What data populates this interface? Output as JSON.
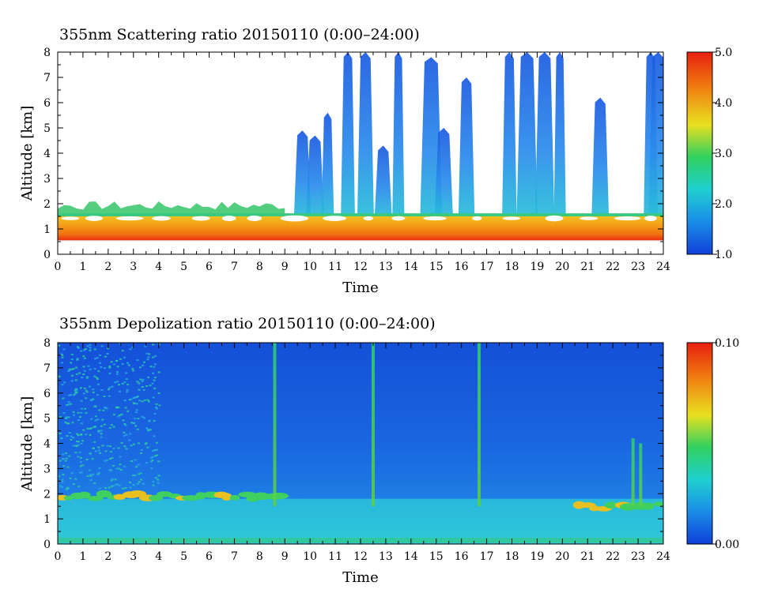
{
  "chart_data": [
    {
      "type": "heatmap",
      "title": "355nm Scattering ratio  20150110 (0:00–24:00)",
      "xlabel": "Time",
      "ylabel": "Altitude [km]",
      "xlim": [
        0,
        24
      ],
      "ylim": [
        0,
        8
      ],
      "x_ticks": [
        "0",
        "1",
        "2",
        "3",
        "4",
        "5",
        "6",
        "7",
        "8",
        "9",
        "10",
        "11",
        "12",
        "13",
        "14",
        "15",
        "16",
        "17",
        "18",
        "19",
        "20",
        "21",
        "22",
        "23",
        "24"
      ],
      "y_ticks": [
        "0",
        "1",
        "2",
        "3",
        "4",
        "5",
        "6",
        "7",
        "8"
      ],
      "colorbar": {
        "range": [
          1.0,
          5.0
        ],
        "tick_labels": [
          "1.0",
          "2.0",
          "3.0",
          "4.0",
          "5.0"
        ]
      },
      "colorscale": [
        "#1040d8",
        "#1a8ce8",
        "#20d0d0",
        "#30d060",
        "#e8e020",
        "#f08010",
        "#e82010"
      ],
      "layers": [
        {
          "feature": "aerosol boundary layer",
          "base_km": 0.55,
          "top_km": 1.5,
          "value": 4.5
        },
        {
          "feature": "low cloud top (clipped)",
          "x_range": [
            0,
            9
          ],
          "top_km": 2.0,
          "value": 2.6
        }
      ],
      "cloud_columns": [
        {
          "time": 9.7,
          "top_km": 4.9
        },
        {
          "time": 10.2,
          "top_km": 4.7
        },
        {
          "time": 10.7,
          "top_km": 5.6
        },
        {
          "time": 11.5,
          "top_km": 8.0
        },
        {
          "time": 12.2,
          "top_km": 8.0
        },
        {
          "time": 12.9,
          "top_km": 4.3
        },
        {
          "time": 13.5,
          "top_km": 8.0
        },
        {
          "time": 14.8,
          "top_km": 7.8
        },
        {
          "time": 15.3,
          "top_km": 5.0
        },
        {
          "time": 16.2,
          "top_km": 7.0
        },
        {
          "time": 17.9,
          "top_km": 8.0
        },
        {
          "time": 18.6,
          "top_km": 8.0
        },
        {
          "time": 19.3,
          "top_km": 8.0
        },
        {
          "time": 19.9,
          "top_km": 8.0
        },
        {
          "time": 21.5,
          "top_km": 6.2
        },
        {
          "time": 23.5,
          "top_km": 8.0
        },
        {
          "time": 23.8,
          "top_km": 8.0
        }
      ]
    },
    {
      "type": "heatmap",
      "title": "355nm Depolization ratio  20150110 (0:00–24:00)",
      "xlabel": "Time",
      "ylabel": "Altitude [km]",
      "xlim": [
        0,
        24
      ],
      "ylim": [
        0,
        8
      ],
      "x_ticks": [
        "0",
        "1",
        "2",
        "3",
        "4",
        "5",
        "6",
        "7",
        "8",
        "9",
        "10",
        "11",
        "12",
        "13",
        "14",
        "15",
        "16",
        "17",
        "18",
        "19",
        "20",
        "21",
        "22",
        "23",
        "24"
      ],
      "y_ticks": [
        "0",
        "1",
        "2",
        "3",
        "4",
        "5",
        "6",
        "7",
        "8"
      ],
      "colorbar": {
        "range": [
          0.0,
          0.1
        ],
        "tick_labels": [
          "0.00",
          "0.10"
        ]
      },
      "colorscale": [
        "#1040d8",
        "#1a8ce8",
        "#20d0d0",
        "#30d060",
        "#e8e020",
        "#f08010",
        "#e82010"
      ],
      "layers": [
        {
          "feature": "background",
          "value": 0.01
        },
        {
          "feature": "boundary layer",
          "base_km": 0.0,
          "top_km": 1.8,
          "value": 0.03
        },
        {
          "feature": "cloud base band",
          "x_range": [
            0,
            9
          ],
          "alt_km": 1.9,
          "value": 0.07
        },
        {
          "feature": "cloud base band",
          "x_range": [
            20.5,
            24
          ],
          "alt_km": 1.5,
          "value": 0.06
        }
      ],
      "streaks": [
        {
          "time": 8.6,
          "top_km": 8.0,
          "value": 0.06
        },
        {
          "time": 12.5,
          "top_km": 8.0,
          "value": 0.06
        },
        {
          "time": 16.7,
          "top_km": 8.0,
          "value": 0.06
        },
        {
          "time": 22.8,
          "top_km": 4.2,
          "value": 0.07
        },
        {
          "time": 23.1,
          "top_km": 4.0,
          "value": 0.07
        }
      ]
    }
  ]
}
